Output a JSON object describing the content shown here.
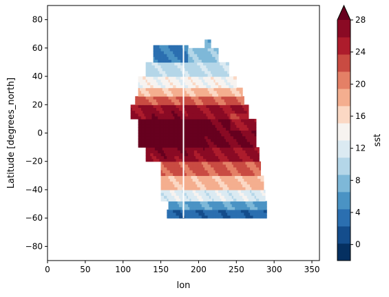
{
  "chart_data": {
    "type": "heatmap",
    "xlabel": "lon",
    "ylabel": "Latitude [degrees_north]",
    "colorbar_label": "sst",
    "colormap": "RdBu_r",
    "xlim": [
      0,
      360
    ],
    "ylim": [
      -90,
      90
    ],
    "x_ticks": [
      "0",
      "50",
      "100",
      "150",
      "200",
      "250",
      "300",
      "350"
    ],
    "y_ticks": [
      "80",
      "60",
      "40",
      "20",
      "0",
      "−20",
      "−40",
      "−60",
      "−80"
    ],
    "colorbar_ticks": [
      "28",
      "24",
      "20",
      "16",
      "12",
      "8",
      "4",
      "0"
    ],
    "colorbar_range": [
      -2,
      28
    ],
    "colorbar_extend": "max",
    "grid": false,
    "grid_cell_degrees": 2,
    "colors": {
      "levels": [
        "#053061",
        "#144d8c",
        "#2b6fb0",
        "#4a93c4",
        "#7eb8d8",
        "#b4d6e8",
        "#dbeaf2",
        "#f7f3f0",
        "#fbd8c4",
        "#f4ae8f",
        "#e48066",
        "#c94b42",
        "#ad1c2c",
        "#8a0a24"
      ],
      "over": "#67001f"
    },
    "data_note_visible": "equatorial Pacific SST pattern from about 100E to 290E, warm pool near 0N 150E, gap line at lon 180",
    "rows": [
      {
        "lat_range": [
          60,
          66
        ],
        "lon_range": [
          208,
          215
        ],
        "sst": 6
      },
      {
        "lat_range": [
          50,
          62
        ],
        "lon_range": [
          140,
          185
        ],
        "sst": 4
      },
      {
        "lat_range": [
          50,
          60
        ],
        "lon_range": [
          185,
          225
        ],
        "sst": 8
      },
      {
        "lat_range": [
          40,
          50
        ],
        "lon_range": [
          130,
          240
        ],
        "sst": 10
      },
      {
        "lat_range": [
          32,
          40
        ],
        "lon_range": [
          120,
          250
        ],
        "sst": 14
      },
      {
        "lat_range": [
          25,
          32
        ],
        "lon_range": [
          120,
          258
        ],
        "sst": 18
      },
      {
        "lat_range": [
          20,
          25
        ],
        "lon_range": [
          115,
          260
        ],
        "sst": 22
      },
      {
        "lat_range": [
          10,
          20
        ],
        "lon_range": [
          110,
          265
        ],
        "sst": 26
      },
      {
        "lat_range": [
          -10,
          10
        ],
        "lon_range": [
          120,
          275
        ],
        "sst": 28
      },
      {
        "lat_range": [
          -20,
          -10
        ],
        "lon_range": [
          130,
          280
        ],
        "sst": 26
      },
      {
        "lat_range": [
          -30,
          -20
        ],
        "lon_range": [
          150,
          282
        ],
        "sst": 22
      },
      {
        "lat_range": [
          -40,
          -30
        ],
        "lon_range": [
          150,
          285
        ],
        "sst": 18
      },
      {
        "lat_range": [
          -48,
          -40
        ],
        "lon_range": [
          150,
          288
        ],
        "sst": 12
      },
      {
        "lat_range": [
          -55,
          -48
        ],
        "lon_range": [
          160,
          290
        ],
        "sst": 6
      },
      {
        "lat_range": [
          -60,
          -55
        ],
        "lon_range": [
          158,
          290
        ],
        "sst": 3
      }
    ]
  }
}
